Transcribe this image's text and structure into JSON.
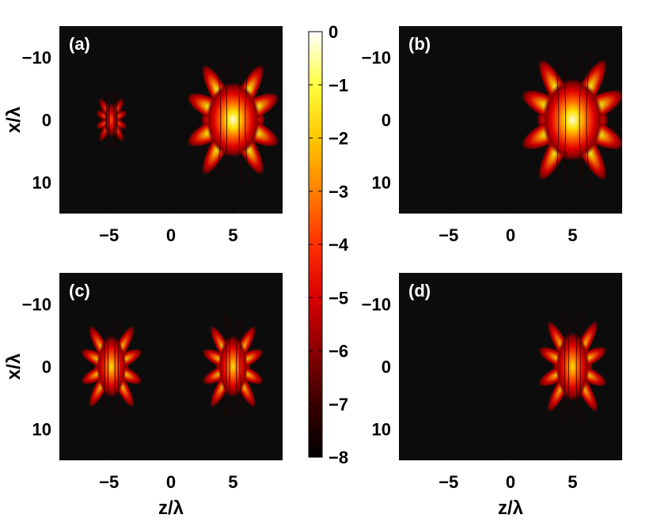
{
  "chart_data": [
    {
      "type": "heatmap",
      "panel_label": "(a)",
      "xlabel": "",
      "ylabel": "x/λ",
      "xlim": [
        -9,
        9
      ],
      "ylim": [
        -15,
        15
      ],
      "y_reversed": true,
      "xticks": [
        -5,
        0,
        5
      ],
      "yticks": [
        -10,
        0,
        10
      ],
      "xtick_labels": [
        "−5",
        "0",
        "5"
      ],
      "ytick_labels": [
        "−10",
        "0",
        "10"
      ],
      "lobes": [
        {
          "z": -4.8,
          "x": 0,
          "peak": -3.5,
          "extent_z": 1.0,
          "extent_x": 5
        },
        {
          "z": 5.0,
          "x": 0,
          "peak": 0,
          "extent_z": 4.0,
          "extent_x": 11
        }
      ]
    },
    {
      "type": "heatmap",
      "panel_label": "(b)",
      "xlabel": "",
      "ylabel": "",
      "xlim": [
        -9,
        9
      ],
      "ylim": [
        -15,
        15
      ],
      "y_reversed": true,
      "xticks": [
        -5,
        0,
        5
      ],
      "yticks": [
        -10,
        0,
        10
      ],
      "xtick_labels": [
        "−5",
        "0",
        "5"
      ],
      "ytick_labels": [
        "−10",
        "0",
        "10"
      ],
      "lobes": [
        {
          "z": 5.0,
          "x": 0,
          "peak": 0,
          "extent_z": 4.5,
          "extent_x": 12
        }
      ]
    },
    {
      "type": "heatmap",
      "panel_label": "(c)",
      "xlabel": "z/λ",
      "ylabel": "x/λ",
      "xlim": [
        -9,
        9
      ],
      "ylim": [
        -15,
        15
      ],
      "y_reversed": true,
      "xticks": [
        -5,
        0,
        5
      ],
      "yticks": [
        -10,
        0,
        10
      ],
      "xtick_labels": [
        "−5",
        "0",
        "5"
      ],
      "ytick_labels": [
        "−10",
        "0",
        "10"
      ],
      "lobes": [
        {
          "z": -4.8,
          "x": 0,
          "peak": -1,
          "extent_z": 2.2,
          "extent_x": 9
        },
        {
          "z": 5.0,
          "x": 0,
          "peak": -1,
          "extent_z": 2.2,
          "extent_x": 9
        }
      ]
    },
    {
      "type": "heatmap",
      "panel_label": "(d)",
      "xlabel": "z/λ",
      "ylabel": "",
      "xlim": [
        -9,
        9
      ],
      "ylim": [
        -15,
        15
      ],
      "y_reversed": true,
      "xticks": [
        -5,
        0,
        5
      ],
      "yticks": [
        -10,
        0,
        10
      ],
      "xtick_labels": [
        "−5",
        "0",
        "5"
      ],
      "ytick_labels": [
        "−10",
        "0",
        "10"
      ],
      "lobes": [
        {
          "z": 5.0,
          "x": 0,
          "peak": -1,
          "extent_z": 2.5,
          "extent_x": 10
        }
      ]
    }
  ],
  "colorbar": {
    "range": [
      -8,
      0
    ],
    "ticks": [
      0,
      -1,
      -2,
      -3,
      -4,
      -5,
      -6,
      -7,
      -8
    ],
    "tick_labels": [
      "0",
      "−1",
      "−2",
      "−3",
      "−4",
      "−5",
      "−6",
      "−7",
      "−8"
    ],
    "colormap": "hot",
    "stops": [
      "#000000",
      "#3a0000",
      "#8a0000",
      "#d90000",
      "#ff3000",
      "#ff8000",
      "#ffc800",
      "#ffff40",
      "#ffffff"
    ]
  },
  "colors": {
    "background": "#0c0c0c",
    "hot_dark": "#8a0000",
    "hot_red": "#e00000",
    "hot_orange": "#ff6a00",
    "hot_yellow": "#ffe000",
    "hot_white": "#ffffd8"
  }
}
